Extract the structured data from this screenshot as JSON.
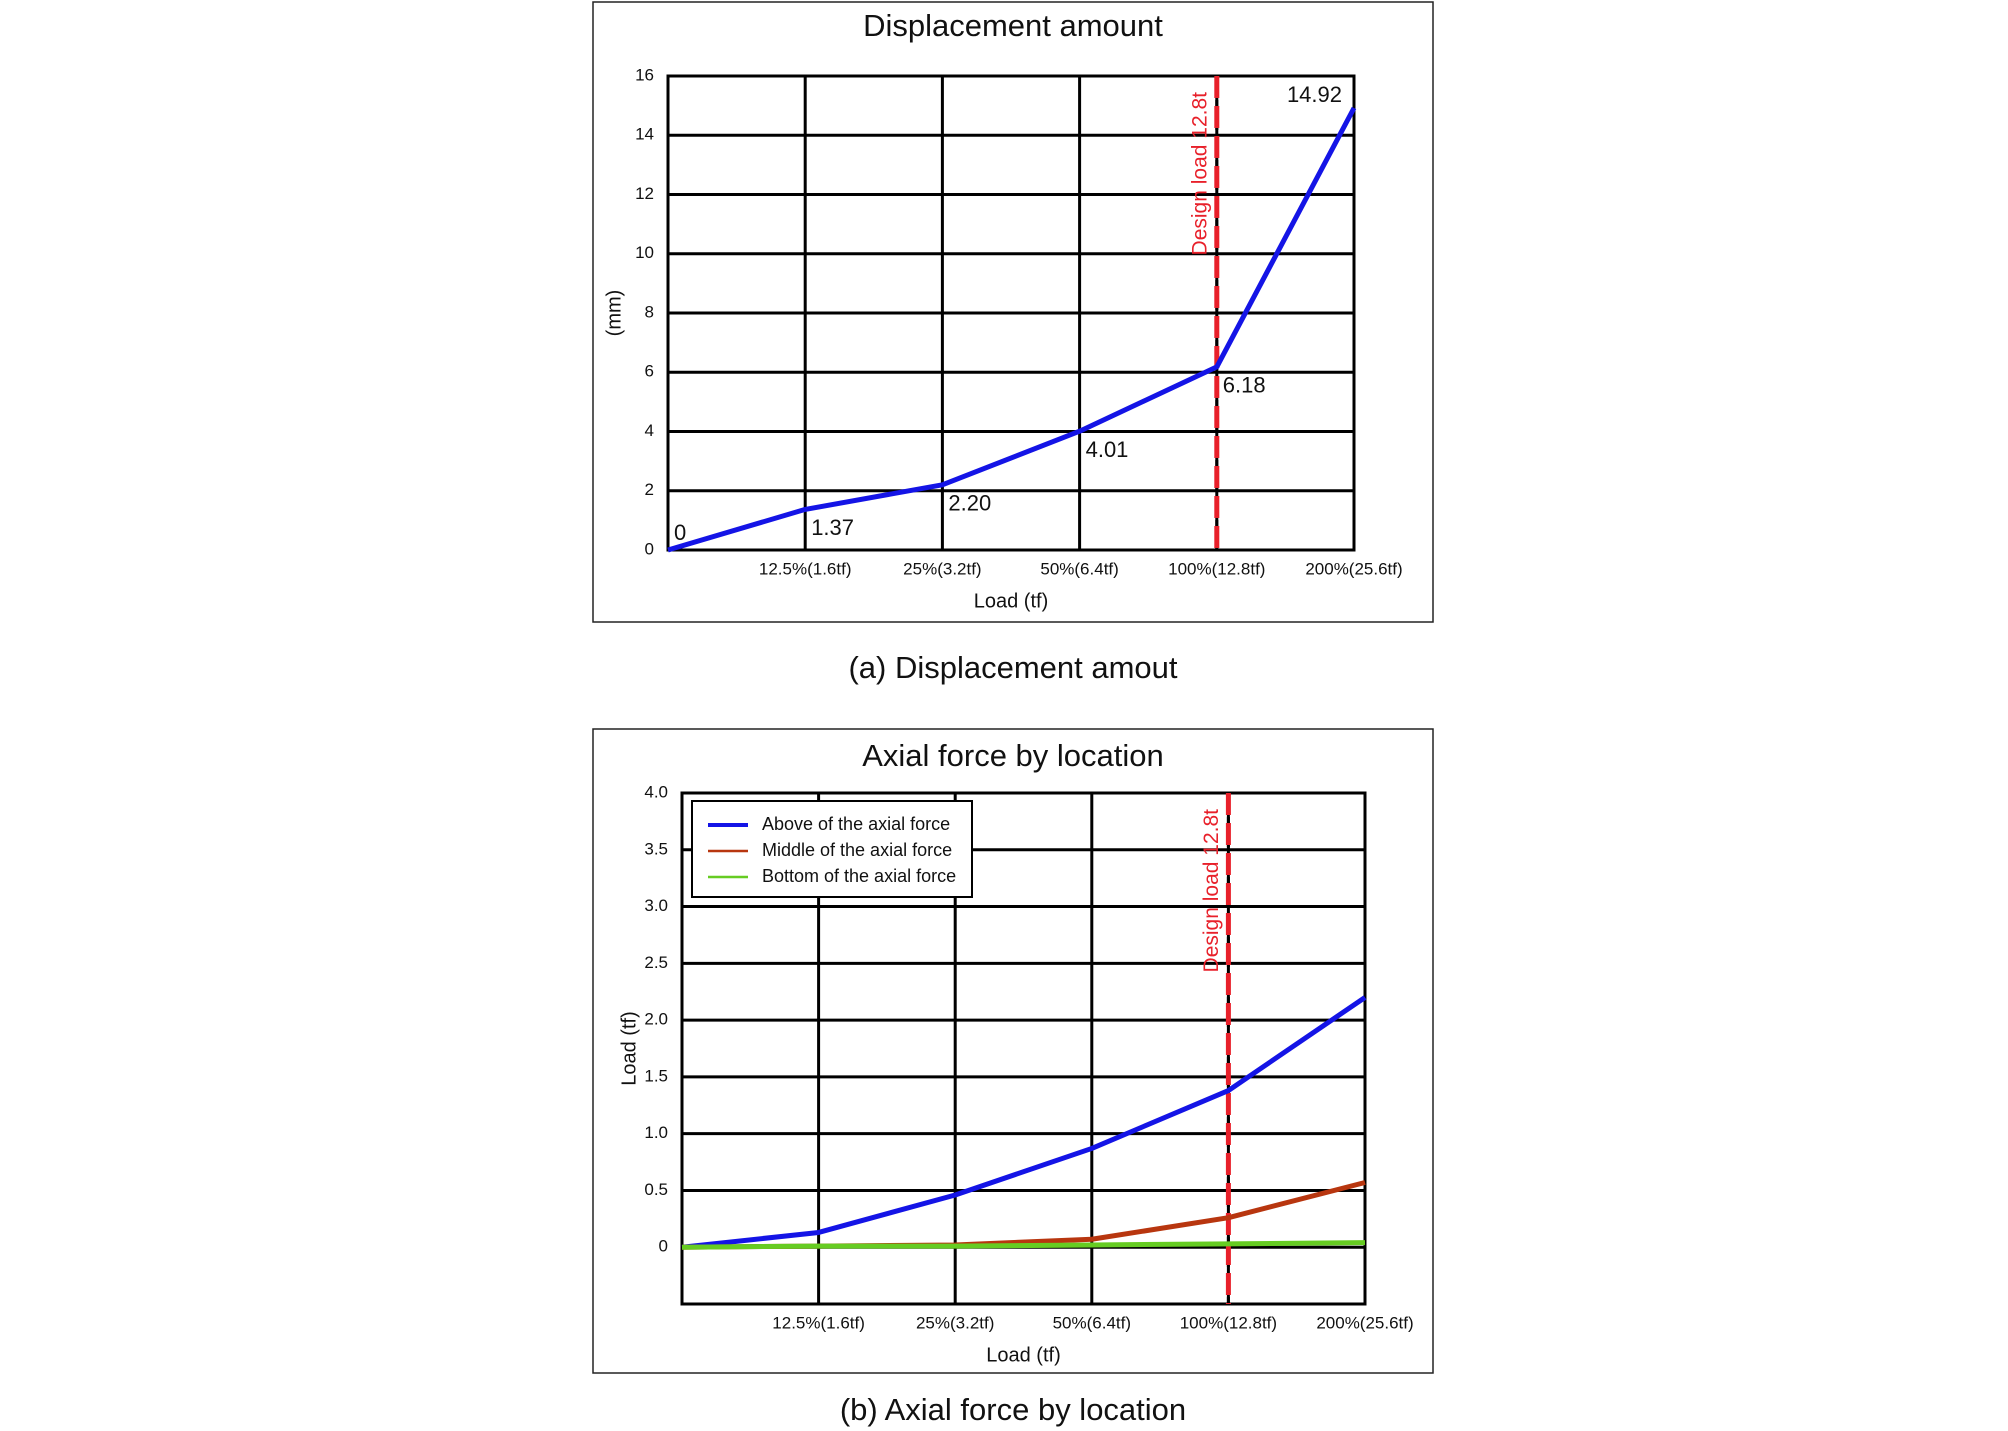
{
  "chart_data": [
    {
      "type": "line",
      "title": "Displacement amount",
      "caption": "(a) Displacement amout",
      "x_label": "Load (tf)",
      "y_label": "(mm)",
      "categories": [
        null,
        "12.5%(1.6tf)",
        "25%(3.2tf)",
        "50%(6.4tf)",
        "100%(12.8tf)",
        "200%(25.6tf)"
      ],
      "series": [
        {
          "name": "Displacement",
          "color": "#1414e6",
          "values": [
            0,
            1.37,
            2.2,
            4.01,
            6.18,
            14.92
          ],
          "value_labels": [
            "0",
            "1.37",
            "2.20",
            "4.01",
            "6.18",
            "14.92"
          ]
        }
      ],
      "ylim": [
        0,
        16
      ],
      "yticks": [
        0,
        2,
        4,
        6,
        8,
        10,
        12,
        14,
        16
      ],
      "grid": true,
      "legend": null,
      "annotations": [
        {
          "text": "Design load 12.8t",
          "x": "100%(12.8tf)",
          "color": "#e8202a"
        }
      ]
    },
    {
      "type": "line",
      "title": "Axial force by location",
      "caption": "(b) Axial force by location",
      "x_label": "Load (tf)",
      "y_label": "Load (tf)",
      "categories": [
        null,
        "12.5%(1.6tf)",
        "25%(3.2tf)",
        "50%(6.4tf)",
        "100%(12.8tf)",
        "200%(25.6tf)"
      ],
      "series": [
        {
          "name": "Above of the axial force",
          "color": "#1414e6",
          "values": [
            0,
            0.13,
            0.46,
            0.87,
            1.38,
            2.2
          ]
        },
        {
          "name": "Middle of the axial force",
          "color": "#b8360f",
          "values": [
            0,
            0.01,
            0.02,
            0.07,
            0.26,
            0.57
          ]
        },
        {
          "name": "Bottom of the axial force",
          "color": "#66cc22",
          "values": [
            0,
            0.01,
            0.01,
            0.02,
            0.03,
            0.04
          ]
        }
      ],
      "ylim": [
        -0.5,
        4
      ],
      "yticks": [
        0,
        0.5,
        {
          "value": 1,
          "label": "1.0"
        },
        1.5,
        {
          "value": 2,
          "label": "2.0"
        },
        2.5,
        {
          "value": 3,
          "label": "3.0"
        },
        3.5,
        {
          "value": 4,
          "label": "4.0"
        }
      ],
      "grid": true,
      "legend": "upper left",
      "annotations": [
        {
          "text": "Design load 12.8t",
          "x": "100%(12.8tf)",
          "color": "#e8202a"
        }
      ]
    }
  ]
}
